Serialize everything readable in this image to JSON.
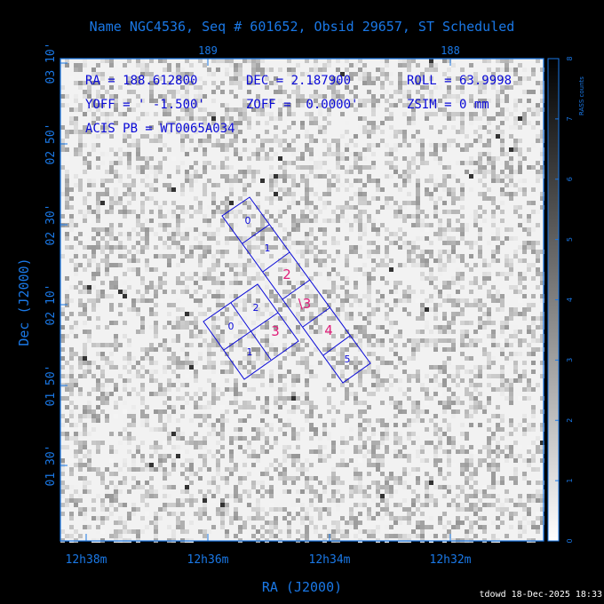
{
  "chart_data": {
    "type": "heatmap",
    "title": "Name NGC4536, Seq # 601652, Obsid 29657, ST Scheduled",
    "xlabel": "RA (J2000)",
    "ylabel": "Dec (J2000)",
    "x_ticks_bottom": [
      "12h38m",
      "12h36m",
      "12h34m",
      "12h32m"
    ],
    "x_ticks_top": [
      "189",
      "188"
    ],
    "y_ticks": [
      "01 30'",
      "01 50'",
      "02 10'",
      "02 30'",
      "02 50'",
      "03 10'"
    ],
    "colorbar": {
      "label": "RASS counts",
      "range": [
        0,
        8
      ],
      "ticks": [
        "0",
        "1",
        "2",
        "3",
        "4",
        "5",
        "6",
        "7",
        "8"
      ]
    },
    "info": {
      "line1": [
        "RA = 188.612800",
        "DEC = 2.187900",
        "ROLL = 63.9998"
      ],
      "line2": [
        "YOFF = ' -1.500'",
        "ZOFF =  0.0000'",
        "ZSIM = 0 mm"
      ],
      "line3": "ACIS PB = WT0065A034"
    },
    "footer": "tdowd 18-Dec-2025 18:33",
    "chip_labels": {
      "acis_s": [
        "0",
        "1",
        "2",
        "\\3",
        "4",
        "5"
      ],
      "acis_i": [
        "0",
        "1",
        "2",
        "3"
      ]
    },
    "colors": {
      "axis": "#1a78e6",
      "chips": "#0a0ad8",
      "active": "#e0207a"
    }
  }
}
